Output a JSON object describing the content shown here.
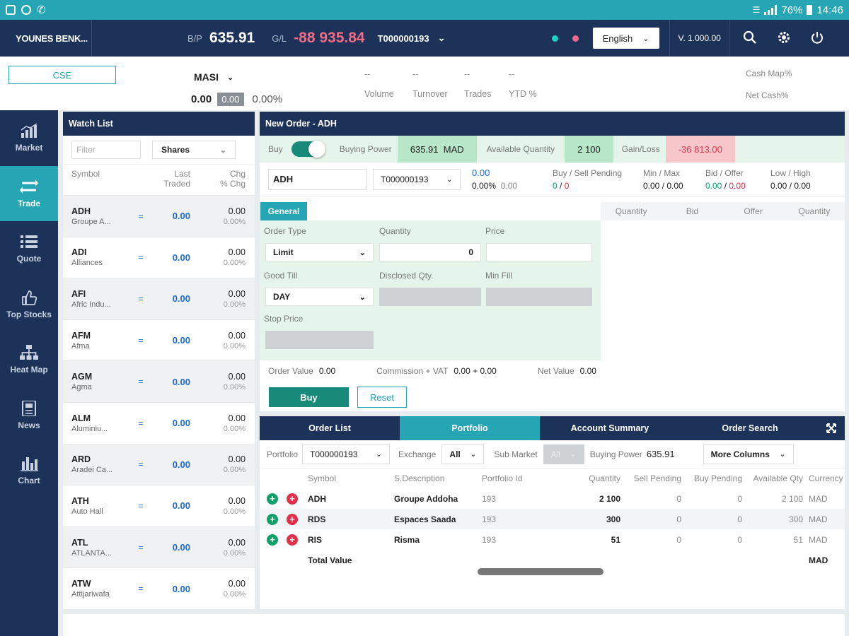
{
  "statusbar": {
    "battery": "76%",
    "time": "14:46"
  },
  "header": {
    "user": "YOUNES BENK...",
    "bp_label": "B/P",
    "bp_value": "635.91",
    "gl_label": "G/L",
    "gl_value": "-88 935.84",
    "account": "T000000193",
    "language": "English",
    "version": "V. 1.000.00",
    "dot_colors": [
      "#1fd1c0",
      "#f06c86"
    ]
  },
  "market": {
    "exchange": "CSE",
    "index": "MASI",
    "index_value": "0.00",
    "index_change": "0.00",
    "index_pct": "0.00%",
    "stats": [
      {
        "value": "--",
        "label": "Volume"
      },
      {
        "value": "--",
        "label": "Turnover"
      },
      {
        "value": "--",
        "label": "Trades"
      },
      {
        "value": "--",
        "label": "YTD %"
      }
    ],
    "cash_map": "Cash Map%",
    "net_cash": "Net Cash%"
  },
  "nav": [
    {
      "label": "Market",
      "icon": "bar-chart-icon"
    },
    {
      "label": "Trade",
      "icon": "transfer-arrows-icon",
      "active": true
    },
    {
      "label": "Quote",
      "icon": "list-icon"
    },
    {
      "label": "Top Stocks",
      "icon": "thumbs-up-icon"
    },
    {
      "label": "Heat Map",
      "icon": "sitemap-icon"
    },
    {
      "label": "News",
      "icon": "newspaper-icon"
    },
    {
      "label": "Chart",
      "icon": "column-chart-icon"
    }
  ],
  "watchlist": {
    "title": "Watch List",
    "filter_placeholder": "Filter",
    "shares": "Shares",
    "col_symbol": "Symbol",
    "col_last1": "Last",
    "col_last2": "Traded",
    "col_chg1": "Chg",
    "col_chg2": "% Chg",
    "rows": [
      {
        "symbol": "ADH",
        "name": "Groupe A...",
        "last": "0.00",
        "chg": "0.00",
        "pct": "0.00%"
      },
      {
        "symbol": "ADI",
        "name": "Alliances",
        "last": "0.00",
        "chg": "0.00",
        "pct": "0.00%"
      },
      {
        "symbol": "AFI",
        "name": "Afric Indu...",
        "last": "0.00",
        "chg": "0.00",
        "pct": "0.00%"
      },
      {
        "symbol": "AFM",
        "name": "Afma",
        "last": "0.00",
        "chg": "0.00",
        "pct": "0.00%"
      },
      {
        "symbol": "AGM",
        "name": "Agma",
        "last": "0.00",
        "chg": "0.00",
        "pct": "0.00%"
      },
      {
        "symbol": "ALM",
        "name": "Aluminiu...",
        "last": "0.00",
        "chg": "0.00",
        "pct": "0.00%"
      },
      {
        "symbol": "ARD",
        "name": "Aradei Ca...",
        "last": "0.00",
        "chg": "0.00",
        "pct": "0.00%"
      },
      {
        "symbol": "ATH",
        "name": "Auto Hall",
        "last": "0.00",
        "chg": "0.00",
        "pct": "0.00%"
      },
      {
        "symbol": "ATL",
        "name": "ATLANTA...",
        "last": "0.00",
        "chg": "0.00",
        "pct": "0.00%"
      },
      {
        "symbol": "ATW",
        "name": "Attijariwafa",
        "last": "0.00",
        "chg": "0.00",
        "pct": "0.00%"
      }
    ]
  },
  "order": {
    "title": "New Order - ADH",
    "buy_label": "Buy",
    "buying_power_label": "Buying Power",
    "buying_power": "635.91",
    "currency": "MAD",
    "avail_qty_label": "Available Quantity",
    "avail_qty": "2 100",
    "gainloss_label": "Gain/Loss",
    "gainloss": "-36 813.00",
    "symbol": "ADH",
    "account": "T000000193",
    "price": "0.00",
    "price_pct": "0.00%",
    "price_chg": "0.00",
    "bs_pending_label": "Buy / Sell Pending",
    "bs_pending_buy": "0",
    "bs_pending_sell": "0",
    "minmax_label": "Min / Max",
    "minmax": "0.00 / 0.00",
    "bidoffer_label": "Bid / Offer",
    "bid": "0.00",
    "offer": "0.00",
    "lowhigh_label": "Low / High",
    "lowhigh": "0.00 / 0.00",
    "general_tab": "General",
    "depth_cols": [
      "Quantity",
      "Bid",
      "Offer",
      "Quantity"
    ],
    "order_type_label": "Order Type",
    "order_type": "Limit",
    "quantity_label": "Quantity",
    "quantity": "0",
    "price_label": "Price",
    "good_till_label": "Good Till",
    "good_till": "DAY",
    "disclosed_label": "Disclosed Qty.",
    "min_fill_label": "Min Fill",
    "stop_price_label": "Stop Price",
    "order_value_label": "Order Value",
    "order_value": "0.00",
    "commission_label": "Commission + VAT",
    "commission": "0.00 + 0.00",
    "net_value_label": "Net Value",
    "net_value": "0.00",
    "buy_button": "Buy",
    "reset_button": "Reset"
  },
  "bottom": {
    "tabs": [
      "Order List",
      "Portfolio",
      "Account Summary",
      "Order Search"
    ],
    "portfolio_label": "Portfolio",
    "portfolio": "T000000193",
    "exchange_label": "Exchange",
    "exchange": "All",
    "submarket_label": "Sub Market",
    "submarket": "All",
    "buying_power_label": "Buying Power",
    "buying_power": "635.91",
    "more_columns": "More Columns",
    "cols": [
      "Symbol",
      "S.Description",
      "Portfolio Id",
      "Quantity",
      "Sell Pending",
      "Buy Pending",
      "Available Qty",
      "Currency"
    ],
    "rows": [
      {
        "symbol": "ADH",
        "desc": "Groupe Addoha",
        "pid": "193",
        "qty": "2 100",
        "sell": "0",
        "buy": "0",
        "avail": "2 100",
        "cur": "MAD"
      },
      {
        "symbol": "RDS",
        "desc": "Espaces Saada",
        "pid": "193",
        "qty": "300",
        "sell": "0",
        "buy": "0",
        "avail": "300",
        "cur": "MAD"
      },
      {
        "symbol": "RIS",
        "desc": "Risma",
        "pid": "193",
        "qty": "51",
        "sell": "0",
        "buy": "0",
        "avail": "51",
        "cur": "MAD"
      }
    ],
    "total_label": "Total Value",
    "total_cur": "MAD"
  }
}
